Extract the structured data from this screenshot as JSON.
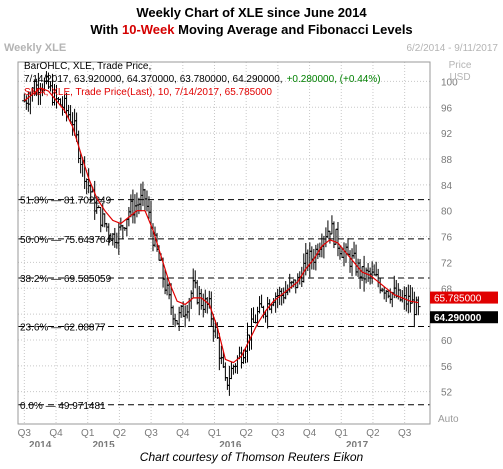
{
  "title": {
    "line1": "Weekly Chart of XLE since June 2014",
    "line2_prefix": "With ",
    "line2_accent": "10-Week",
    "line2_suffix": " Moving Average and Fibonacci Levels"
  },
  "caption": "Chart courtesy of Thomson Reuters Eikon",
  "colors": {
    "price_bars": "#000000",
    "sma_line": "#e00000",
    "grid": "#c8c8c8",
    "fib_line": "#000000",
    "background": "#ffffff",
    "change_text": "#008000",
    "sma_legend": "#e00000"
  },
  "chart_data": {
    "type": "ohlc",
    "header_label": "Weekly XLE",
    "date_range": "6/2/2014 - 9/11/2017",
    "axis_unit_labels": [
      "Price",
      "USD"
    ],
    "legend": {
      "bar_series": "BarOHLC, XLE, Trade Price,",
      "bar_values": "7/14/2017, 63.920000, 64.370000, 63.780000, 64.290000,",
      "bar_change": "+0.280000, (+0.44%)",
      "sma_series": "SMA, XLE, Trade Price(Last),  10, 7/14/2017, 65.785000"
    },
    "ylim": [
      47,
      103
    ],
    "y_ticks": [
      52,
      56,
      60,
      64,
      68,
      72,
      76,
      80,
      84,
      88,
      92,
      96,
      100
    ],
    "x_quarters": [
      {
        "label": "Q3",
        "x": 0
      },
      {
        "label": "Q4",
        "x": 3
      },
      {
        "label": "Q1",
        "x": 6
      },
      {
        "label": "Q2",
        "x": 9
      },
      {
        "label": "Q3",
        "x": 12
      },
      {
        "label": "Q4",
        "x": 15
      },
      {
        "label": "Q1",
        "x": 18
      },
      {
        "label": "Q2",
        "x": 21
      },
      {
        "label": "Q3",
        "x": 24
      },
      {
        "label": "Q4",
        "x": 27
      },
      {
        "label": "Q1",
        "x": 30
      },
      {
        "label": "Q2",
        "x": 33
      },
      {
        "label": "Q3",
        "x": 36
      }
    ],
    "x_years": [
      {
        "label": "2014",
        "x": 1.5
      },
      {
        "label": "2015",
        "x": 7.5
      },
      {
        "label": "2016",
        "x": 19.5
      },
      {
        "label": "2017",
        "x": 31.5
      }
    ],
    "x_range": [
      -0.6,
      38.4
    ],
    "fib_levels": [
      {
        "label": "51.8%",
        "value": 81.702249,
        "text": "81.702249"
      },
      {
        "label": "50.0%",
        "value": 75.643704,
        "text": "75.643704"
      },
      {
        "label": "38.2%",
        "value": 69.585059,
        "text": "69.585059"
      },
      {
        "label": "23.6%",
        "value": 62.08877,
        "text": "62.08877"
      },
      {
        "label": "0.0%",
        "value": 49.971481,
        "text": "49.971481"
      }
    ],
    "last_price_flags": [
      {
        "text": "65.785000",
        "value": 65.785,
        "series": "sma"
      },
      {
        "text": "64.290000",
        "value": 64.29,
        "series": "price"
      }
    ],
    "auto_label": "Auto",
    "month_closes": [
      97,
      98.5,
      100,
      99,
      97,
      96,
      94,
      88,
      84,
      80,
      78,
      76,
      77,
      80,
      81,
      82,
      76,
      71,
      66,
      63,
      65,
      68,
      66,
      65,
      60,
      53,
      56,
      58,
      61,
      64,
      65,
      67,
      67,
      68,
      69,
      72,
      73,
      76,
      77.5,
      75,
      73,
      72,
      70,
      70,
      69,
      68,
      67,
      66,
      66,
      64.3
    ],
    "sma_values": [
      97,
      98,
      99,
      98.5,
      97,
      95.5,
      93,
      89,
      85,
      82,
      80,
      78.5,
      78,
      79,
      80,
      80,
      77,
      73,
      69,
      66,
      65.5,
      66.5,
      66.5,
      65.5,
      62,
      57,
      56.5,
      57.5,
      60,
      62.5,
      64.5,
      66,
      67,
      68,
      69,
      71,
      72.5,
      74.5,
      75.5,
      75,
      73.5,
      72,
      70.5,
      70,
      69,
      68,
      67,
      66.5,
      66,
      65.785
    ]
  }
}
